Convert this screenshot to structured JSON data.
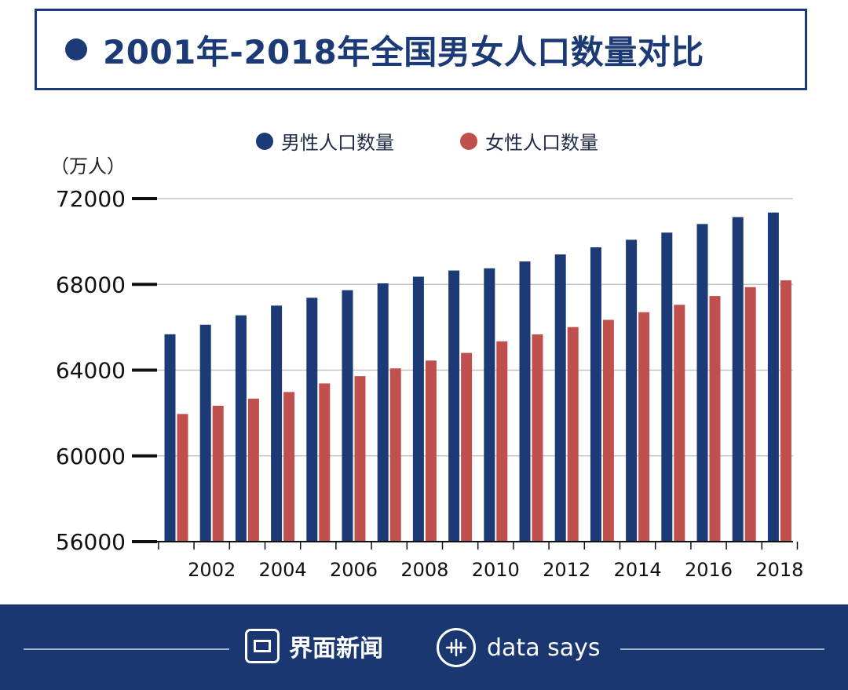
{
  "title": "2001年-2018年全国男女人口数量对比",
  "unit_label": "（万人）",
  "colors": {
    "male": "#1c3a75",
    "female": "#c0504d",
    "title": "#1c3a75",
    "footer": "#1b3772"
  },
  "legend": {
    "male": "男性人口数量",
    "female": "女性人口数量"
  },
  "footer": {
    "brand_cn": "界面新闻",
    "brand_en": "data says"
  },
  "chart_data": {
    "type": "bar",
    "xlabel": "",
    "ylabel": "（万人）",
    "ylim": [
      56000,
      72000
    ],
    "yticks": [
      56000,
      60000,
      64000,
      68000,
      72000
    ],
    "xtick_labels": [
      "2002",
      "2004",
      "2006",
      "2008",
      "2010",
      "2012",
      "2014",
      "2016",
      "2018"
    ],
    "categories": [
      "2001",
      "2002",
      "2003",
      "2004",
      "2005",
      "2006",
      "2007",
      "2008",
      "2009",
      "2010",
      "2011",
      "2012",
      "2013",
      "2014",
      "2015",
      "2016",
      "2017",
      "2018"
    ],
    "series": [
      {
        "name": "男性人口数量",
        "values": [
          65672,
          66115,
          66556,
          67009,
          67375,
          67728,
          68048,
          68357,
          68647,
          68748,
          69068,
          69395,
          69728,
          70079,
          70414,
          70815,
          71137,
          71351
        ]
      },
      {
        "name": "女性人口数量",
        "values": [
          61955,
          62338,
          62671,
          62979,
          63381,
          63720,
          64081,
          64446,
          64803,
          65343,
          65667,
          66009,
          66344,
          66703,
          67048,
          67456,
          67871,
          68187
        ]
      }
    ],
    "grid": true,
    "legend_position": "top"
  }
}
